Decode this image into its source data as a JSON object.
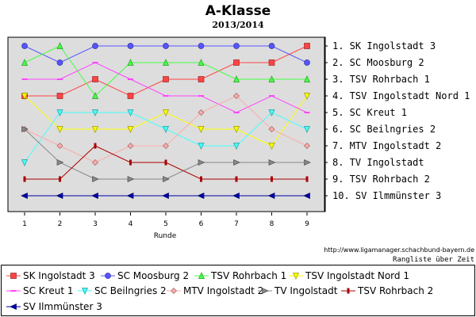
{
  "chart_data": {
    "type": "line",
    "title": "A-Klasse",
    "subtitle": "2013/2014",
    "xlabel": "Runde",
    "ylabel": "",
    "x": [
      1,
      2,
      3,
      4,
      5,
      6,
      7,
      8,
      9
    ],
    "x_ticks": [
      "1",
      "2",
      "3",
      "4",
      "5",
      "6",
      "7",
      "8",
      "9"
    ],
    "ylim": [
      10,
      1
    ],
    "grid": false,
    "legend_position": "bottom",
    "right_axis_labels": [
      "1. SK Ingolstadt 3",
      "2. SC Moosburg 2",
      "3. TSV Rohrbach 1",
      "4. TSV Ingolstadt Nord 1",
      "5. SC Kreut 1",
      "6. SC Beilngries 2",
      "7. MTV Ingolstadt 2",
      "8. TV Ingolstadt",
      "9. TSV Rohrbach 2",
      "10. SV Ilmmünster 3"
    ],
    "series": [
      {
        "name": "SK Ingolstadt 3",
        "color": "#ff4444",
        "marker": "square",
        "values": [
          4,
          4,
          3,
          4,
          3,
          3,
          2,
          2,
          1
        ]
      },
      {
        "name": "SC Moosburg 2",
        "color": "#5555ff",
        "marker": "circle",
        "values": [
          1,
          2,
          1,
          1,
          1,
          1,
          1,
          1,
          2
        ]
      },
      {
        "name": "TSV Rohrbach 1",
        "color": "#44ff44",
        "marker": "triangle-up",
        "values": [
          2,
          1,
          4,
          2,
          2,
          2,
          3,
          3,
          3
        ]
      },
      {
        "name": "TSV Ingolstadt Nord 1",
        "color": "#ffff00",
        "marker": "triangle-down",
        "values": [
          4,
          6,
          6,
          6,
          5,
          6,
          6,
          7,
          4
        ]
      },
      {
        "name": "SC Kreut 1",
        "color": "#ff44ff",
        "marker": "dash",
        "values": [
          3,
          3,
          2,
          3,
          4,
          4,
          5,
          4,
          5
        ]
      },
      {
        "name": "SC Beilngries 2",
        "color": "#44ffff",
        "marker": "triangle-down",
        "values": [
          8,
          5,
          5,
          5,
          6,
          7,
          7,
          5,
          6
        ]
      },
      {
        "name": "MTV Ingolstadt 2",
        "color": "#ffaaaa",
        "marker": "diamond",
        "values": [
          6,
          7,
          8,
          7,
          7,
          5,
          4,
          6,
          7
        ]
      },
      {
        "name": "TV Ingolstadt",
        "color": "#888888",
        "marker": "triangle-right",
        "values": [
          6,
          8,
          9,
          9,
          9,
          8,
          8,
          8,
          8
        ]
      },
      {
        "name": "TSV Rohrbach 2",
        "color": "#aa0000",
        "marker": "tee",
        "values": [
          9,
          9,
          7,
          8,
          8,
          9,
          9,
          9,
          9
        ]
      },
      {
        "name": "SV Ilmmünster 3",
        "color": "#0000aa",
        "marker": "triangle-left",
        "values": [
          10,
          10,
          10,
          10,
          10,
          10,
          10,
          10,
          10
        ]
      }
    ]
  },
  "footer": {
    "url": "http://www.ligamanager.schachbund-bayern.de",
    "caption": "Rangliste über Zeit"
  }
}
